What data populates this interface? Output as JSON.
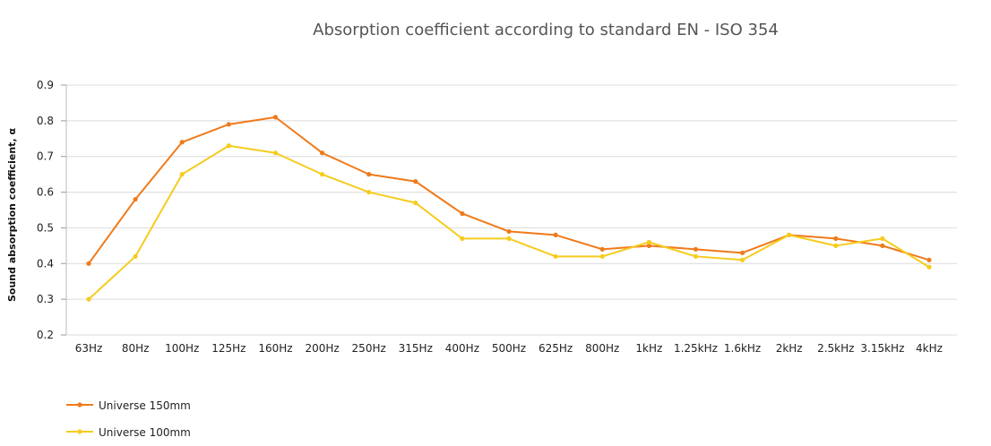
{
  "chart_data": {
    "type": "line",
    "title": "Absorption coefficient according to standard EN - ISO 354",
    "xlabel": "",
    "ylabel": "Sound absorption coefficient, α",
    "ylim": [
      0.2,
      0.9
    ],
    "yticks": [
      "0.2",
      "0.3",
      "0.4",
      "0.5",
      "0.6",
      "0.7",
      "0.8",
      "0.9"
    ],
    "grid": true,
    "legend_position": "bottom-left",
    "categories": [
      "63Hz",
      "80Hz",
      "100Hz",
      "125Hz",
      "160Hz",
      "200Hz",
      "250Hz",
      "315Hz",
      "400Hz",
      "500Hz",
      "625Hz",
      "800Hz",
      "1kHz",
      "1.25kHz",
      "1.6kHz",
      "2kHz",
      "2.5kHz",
      "3.15kHz",
      "4kHz"
    ],
    "series": [
      {
        "name": "Universe 150mm",
        "color": "#f07a1a",
        "values": [
          0.4,
          0.58,
          0.74,
          0.79,
          0.81,
          0.71,
          0.65,
          0.63,
          0.54,
          0.49,
          0.48,
          0.44,
          0.45,
          0.44,
          0.43,
          0.48,
          0.47,
          0.45,
          0.41
        ]
      },
      {
        "name": "Universe 100mm",
        "color": "#f5cc1e",
        "values": [
          0.3,
          0.42,
          0.65,
          0.73,
          0.71,
          0.65,
          0.6,
          0.57,
          0.47,
          0.47,
          0.42,
          0.42,
          0.46,
          0.42,
          0.41,
          0.48,
          0.45,
          0.47,
          0.39
        ]
      }
    ]
  }
}
